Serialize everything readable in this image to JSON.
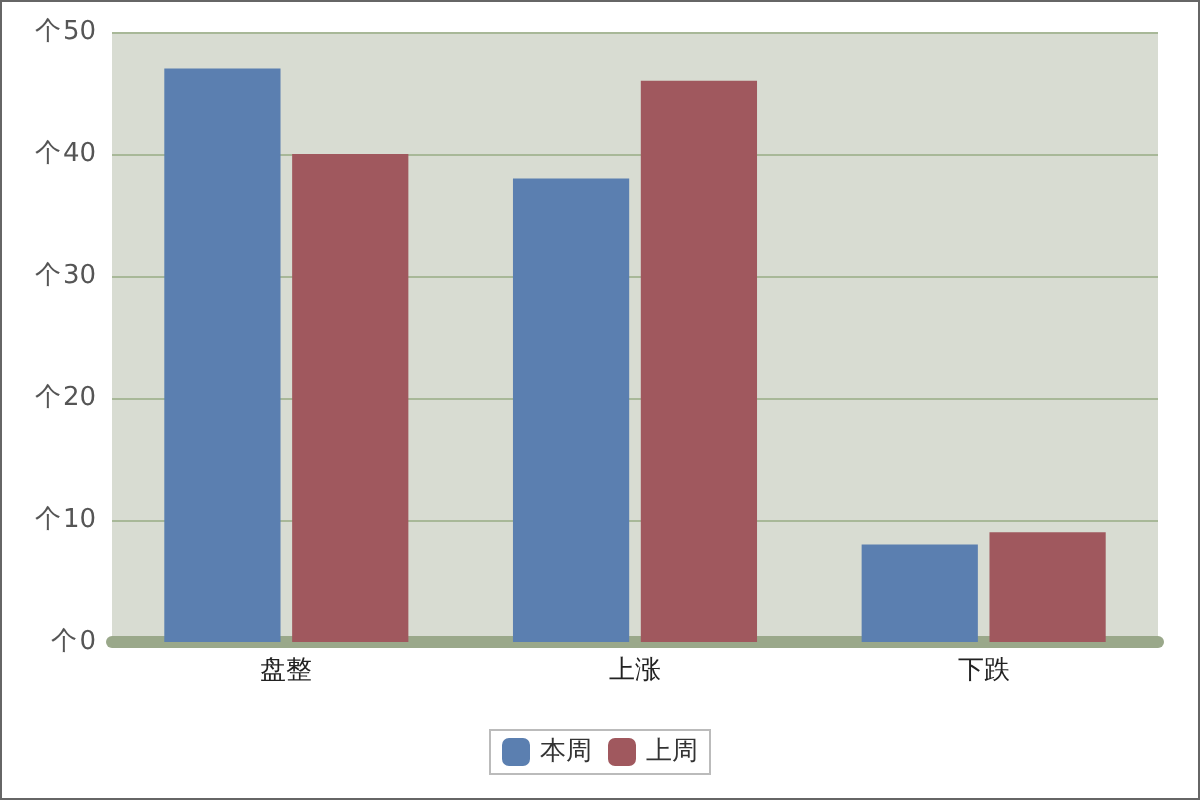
{
  "chart_data": {
    "type": "bar",
    "categories": [
      "盘整",
      "上涨",
      "下跌"
    ],
    "series": [
      {
        "name": "本周",
        "color": "#5b7fb0",
        "values": [
          47,
          38,
          8
        ]
      },
      {
        "name": "上周",
        "color": "#a0585e",
        "values": [
          40,
          46,
          9
        ]
      }
    ],
    "ylim": [
      0,
      50
    ],
    "yticks": [
      0,
      10,
      20,
      30,
      40,
      50
    ],
    "ylabel": "个",
    "grid": "y",
    "legend": "bottom"
  }
}
